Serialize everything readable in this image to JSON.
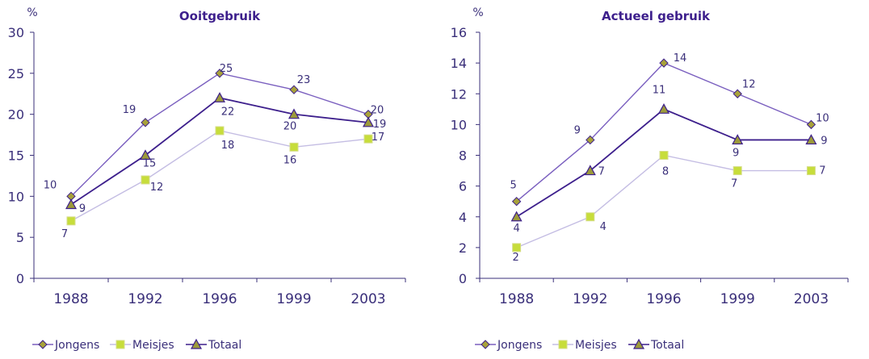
{
  "colors": {
    "axis": "#3a2f7a",
    "text": "#3a2f7a",
    "title": "#3d1f8c",
    "jongens_line": "#7a5fbf",
    "jongens_marker": "#a8a23a",
    "meisjes_line": "#c4bde3",
    "meisjes_marker": "#c7dd3b",
    "totaal_line": "#3d1f8c",
    "totaal_marker": "#9c9a3a"
  },
  "chart_data": [
    {
      "type": "line",
      "title": "Ooitgebruik",
      "ylabel": "%",
      "xlabel": "",
      "categories": [
        "1988",
        "1992",
        "1996",
        "1999",
        "2003"
      ],
      "ylim": [
        0,
        30
      ],
      "yticks": [
        "0",
        "5",
        "10",
        "15",
        "20",
        "25",
        "30"
      ],
      "grid": false,
      "legend_position": "bottom",
      "series": [
        {
          "name": "Jongens",
          "key": "jongens",
          "marker": "diamond",
          "values": [
            10,
            19,
            25,
            23,
            20
          ],
          "labels": [
            "10",
            "19",
            "25",
            "23",
            "20"
          ]
        },
        {
          "name": "Meisjes",
          "key": "meisjes",
          "marker": "square",
          "values": [
            7,
            12,
            18,
            16,
            17
          ],
          "labels": [
            "7",
            "12",
            "18",
            "16",
            "17"
          ]
        },
        {
          "name": "Totaal",
          "key": "totaal",
          "marker": "triangle",
          "values": [
            9,
            15,
            22,
            20,
            19
          ],
          "labels": [
            "9",
            "15",
            "22",
            "20",
            "19"
          ]
        }
      ]
    },
    {
      "type": "line",
      "title": "Actueel gebruik",
      "ylabel": "%",
      "xlabel": "",
      "categories": [
        "1988",
        "1992",
        "1996",
        "1999",
        "2003"
      ],
      "ylim": [
        0,
        16
      ],
      "yticks": [
        "0",
        "2",
        "4",
        "6",
        "8",
        "10",
        "12",
        "14",
        "16"
      ],
      "grid": false,
      "legend_position": "bottom",
      "series": [
        {
          "name": "Jongens",
          "key": "jongens",
          "marker": "diamond",
          "values": [
            5,
            9,
            14,
            12,
            10
          ],
          "labels": [
            "5",
            "9",
            "14",
            "12",
            "10"
          ]
        },
        {
          "name": "Meisjes",
          "key": "meisjes",
          "marker": "square",
          "values": [
            2,
            4,
            8,
            7,
            7
          ],
          "labels": [
            "2",
            "4",
            "8",
            "7",
            "7"
          ]
        },
        {
          "name": "Totaal",
          "key": "totaal",
          "marker": "triangle",
          "values": [
            4,
            7,
            11,
            9,
            9
          ],
          "labels": [
            "4",
            "7",
            "11",
            "9",
            "9"
          ]
        }
      ]
    }
  ]
}
